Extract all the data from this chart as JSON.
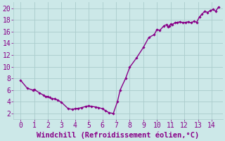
{
  "xlabel": "Windchill (Refroidissement éolien,°C)",
  "xlim": [
    -0.5,
    14.8
  ],
  "ylim": [
    1,
    21
  ],
  "yticks": [
    2,
    4,
    6,
    8,
    10,
    12,
    14,
    16,
    18,
    20
  ],
  "xticks": [
    0,
    1,
    2,
    3,
    4,
    5,
    6,
    7,
    8,
    9,
    10,
    11,
    12,
    13,
    14
  ],
  "x": [
    0.0,
    0.5,
    0.9,
    1.0,
    1.4,
    1.7,
    1.85,
    2.0,
    2.15,
    2.3,
    2.5,
    2.7,
    3.0,
    3.5,
    3.8,
    4.0,
    4.2,
    4.5,
    4.8,
    5.0,
    5.2,
    5.5,
    5.7,
    6.0,
    6.2,
    6.5,
    6.8,
    7.1,
    7.3,
    7.7,
    8.0,
    8.5,
    9.0,
    9.4,
    9.8,
    10.0,
    10.2,
    10.5,
    10.7,
    10.8,
    10.9,
    11.0,
    11.1,
    11.3,
    11.5,
    11.7,
    11.9,
    12.1,
    12.3,
    12.5,
    12.7,
    12.9,
    13.1,
    13.3,
    13.5,
    13.7,
    13.9,
    14.1,
    14.3,
    14.5
  ],
  "y": [
    7.7,
    6.3,
    6.0,
    6.1,
    5.5,
    5.1,
    4.85,
    4.9,
    4.7,
    4.5,
    4.5,
    4.3,
    3.9,
    2.8,
    2.7,
    2.8,
    2.85,
    3.0,
    3.2,
    3.3,
    3.2,
    3.1,
    3.0,
    2.8,
    2.5,
    2.1,
    2.0,
    4.0,
    6.0,
    8.0,
    9.9,
    11.5,
    13.3,
    15.0,
    15.5,
    16.4,
    16.2,
    17.0,
    17.2,
    16.8,
    17.0,
    17.3,
    17.2,
    17.5,
    17.6,
    17.7,
    17.5,
    17.6,
    17.7,
    17.5,
    17.8,
    17.6,
    18.5,
    19.0,
    19.5,
    19.3,
    19.6,
    19.8,
    19.5,
    20.2
  ],
  "line_color": "#880088",
  "marker": "D",
  "marker_size": 1.8,
  "bg_color": "#cce8e8",
  "grid_color": "#aacccc",
  "tick_label_color": "#880088",
  "xlabel_color": "#880088",
  "line_width": 1.0,
  "tick_fontsize": 7,
  "xlabel_fontsize": 7.5
}
